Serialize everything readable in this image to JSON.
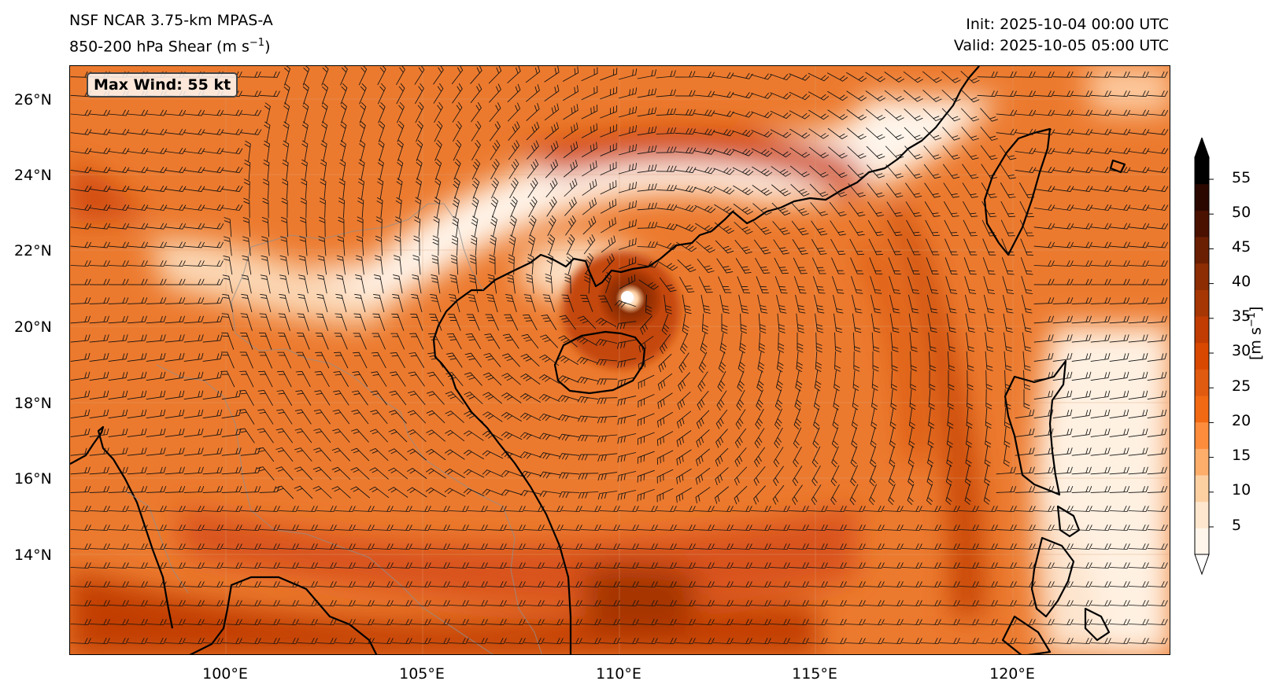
{
  "header": {
    "title_line1": "NSF NCAR 3.75-km MPAS-A",
    "title_line2_prefix": "850-200 hPa Shear (m s",
    "title_line2_sup": "−1",
    "title_line2_suffix": ")",
    "init": "Init: 2025-10-04 00:00 UTC",
    "valid": "Valid: 2025-10-05 05:00 UTC"
  },
  "annotation": {
    "max_wind": "Max Wind: 55 kt"
  },
  "axes": {
    "lat_labels": [
      "26°N",
      "24°N",
      "22°N",
      "20°N",
      "18°N",
      "16°N",
      "14°N"
    ],
    "lon_labels": [
      "100°E",
      "105°E",
      "110°E",
      "115°E",
      "120°E"
    ]
  },
  "colorbar": {
    "tick_labels": [
      "55",
      "50",
      "45",
      "40",
      "35",
      "30",
      "25",
      "20",
      "15",
      "10",
      "5"
    ],
    "units_prefix": "[m s",
    "units_sup": "−1",
    "units_suffix": "]",
    "colors": [
      "#fff5eb",
      "#fee6ce",
      "#fdd0a2",
      "#fdae6b",
      "#fd8d3c",
      "#f16913",
      "#e05a10",
      "#d94801",
      "#c03c03",
      "#a63603",
      "#8c2d04",
      "#6b1f02",
      "#4a1100",
      "#2a0800",
      "#000000"
    ]
  },
  "map_features": {
    "cyclone_center": "20.8°N 110.8°E"
  }
}
